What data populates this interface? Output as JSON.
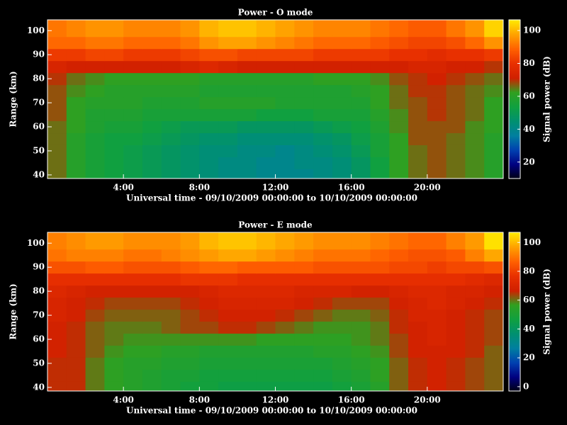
{
  "chart_data": [
    {
      "type": "heatmap",
      "title": "Power - O mode",
      "xlabel": "Universal time - 09/10/2009 00:00:00 to 10/10/2009 00:00:00",
      "ylabel": "Range (km)",
      "colorbar_label": "Signal power (dB)",
      "x_bins": [
        0,
        1,
        2,
        3,
        4,
        5,
        6,
        7,
        8,
        9,
        10,
        11,
        12,
        13,
        14,
        15,
        16,
        17,
        18,
        19,
        20,
        21,
        22,
        23,
        24
      ],
      "y_bins": [
        38.5,
        42.5,
        47.5,
        52.5,
        57.5,
        62.5,
        67.5,
        72.5,
        77.5,
        82.5,
        87.5,
        92.5,
        97.5,
        104.5
      ],
      "xlim": [
        0,
        24
      ],
      "ylim": [
        38.5,
        104.5
      ],
      "zlim": [
        10,
        106.5
      ],
      "xticks": [
        {
          "value": 4,
          "label": "4:00"
        },
        {
          "value": 8,
          "label": "8:00"
        },
        {
          "value": 12,
          "label": "12:00"
        },
        {
          "value": 16,
          "label": "16:00"
        },
        {
          "value": 20,
          "label": "20:00"
        }
      ],
      "yticks": [
        40,
        50,
        60,
        70,
        80,
        90,
        100
      ],
      "zticks": [
        20,
        40,
        60,
        80,
        100
      ],
      "colormap": [
        "#000010",
        "#000080",
        "#0040b0",
        "#007fa0",
        "#009070",
        "#10a040",
        "#30a020",
        "#d02000",
        "#e83000",
        "#ff6000",
        "#ffa000",
        "#ffe800"
      ],
      "values": [
        [
          66,
          60,
          56,
          54,
          52,
          50,
          48,
          46,
          44,
          42,
          42,
          40,
          40,
          40,
          42,
          44,
          48,
          54,
          62,
          66,
          68,
          66,
          64,
          60
        ],
        [
          66,
          60,
          56,
          54,
          52,
          50,
          48,
          46,
          44,
          42,
          42,
          40,
          40,
          42,
          42,
          44,
          48,
          54,
          62,
          66,
          68,
          66,
          64,
          60
        ],
        [
          66,
          60,
          56,
          54,
          52,
          50,
          48,
          46,
          44,
          44,
          42,
          42,
          40,
          42,
          44,
          46,
          50,
          56,
          62,
          66,
          68,
          66,
          64,
          60
        ],
        [
          66,
          60,
          56,
          54,
          54,
          52,
          50,
          48,
          46,
          46,
          44,
          44,
          44,
          44,
          46,
          48,
          52,
          56,
          62,
          68,
          68,
          66,
          64,
          60
        ],
        [
          66,
          62,
          58,
          56,
          56,
          54,
          52,
          50,
          50,
          50,
          48,
          48,
          48,
          48,
          50,
          52,
          54,
          58,
          64,
          68,
          68,
          68,
          64,
          62
        ],
        [
          68,
          62,
          58,
          58,
          58,
          56,
          56,
          56,
          56,
          56,
          56,
          54,
          54,
          54,
          56,
          56,
          56,
          60,
          64,
          68,
          70,
          68,
          66,
          62
        ],
        [
          68,
          62,
          60,
          60,
          60,
          58,
          58,
          58,
          60,
          60,
          60,
          60,
          58,
          58,
          58,
          58,
          58,
          62,
          66,
          68,
          70,
          68,
          66,
          62
        ],
        [
          68,
          64,
          62,
          60,
          60,
          60,
          60,
          60,
          58,
          58,
          58,
          58,
          58,
          58,
          58,
          58,
          60,
          62,
          66,
          70,
          70,
          68,
          66,
          64
        ],
        [
          70,
          66,
          64,
          62,
          62,
          62,
          62,
          62,
          60,
          60,
          60,
          60,
          60,
          60,
          62,
          62,
          62,
          64,
          68,
          70,
          72,
          70,
          68,
          66
        ],
        [
          74,
          72,
          72,
          72,
          72,
          72,
          72,
          74,
          76,
          74,
          72,
          72,
          72,
          72,
          72,
          72,
          72,
          72,
          72,
          74,
          74,
          72,
          72,
          70
        ],
        [
          82,
          82,
          84,
          84,
          82,
          82,
          82,
          84,
          86,
          86,
          84,
          84,
          84,
          84,
          82,
          82,
          82,
          82,
          80,
          80,
          78,
          80,
          80,
          82
        ],
        [
          90,
          90,
          92,
          92,
          90,
          90,
          90,
          92,
          96,
          98,
          98,
          96,
          94,
          92,
          90,
          90,
          90,
          88,
          86,
          84,
          84,
          86,
          90,
          96
        ],
        [
          92,
          94,
          96,
          96,
          94,
          94,
          94,
          96,
          100,
          102,
          102,
          100,
          98,
          96,
          94,
          94,
          94,
          92,
          90,
          88,
          88,
          92,
          96,
          104
        ]
      ]
    },
    {
      "type": "heatmap",
      "title": "Power - E mode",
      "xlabel": "Universal time - 09/10/2009 00:00:00 to 10/10/2009 00:00:00",
      "ylabel": "Range (km)",
      "colorbar_label": "Signal power (dB)",
      "x_bins": [
        0,
        1,
        2,
        3,
        4,
        5,
        6,
        7,
        8,
        9,
        10,
        11,
        12,
        13,
        14,
        15,
        16,
        17,
        18,
        19,
        20,
        21,
        22,
        23,
        24
      ],
      "y_bins": [
        38.5,
        42.5,
        47.5,
        52.5,
        57.5,
        62.5,
        67.5,
        72.5,
        77.5,
        82.5,
        87.5,
        92.5,
        97.5,
        104.5
      ],
      "xlim": [
        0,
        24
      ],
      "ylim": [
        38.5,
        104.5
      ],
      "zlim": [
        -3,
        107
      ],
      "xticks": [
        {
          "value": 4,
          "label": "4:00"
        },
        {
          "value": 8,
          "label": "8:00"
        },
        {
          "value": 12,
          "label": "12:00"
        },
        {
          "value": 16,
          "label": "16:00"
        },
        {
          "value": 20,
          "label": "20:00"
        }
      ],
      "yticks": [
        40,
        50,
        60,
        70,
        80,
        90,
        100
      ],
      "zticks": [
        0,
        20,
        40,
        60,
        80,
        100
      ],
      "colormap": [
        "#000010",
        "#000080",
        "#0040b0",
        "#007fa0",
        "#009070",
        "#10a040",
        "#30a020",
        "#d02000",
        "#e83000",
        "#ff6000",
        "#ffa000",
        "#ffe800"
      ],
      "values": [
        [
          66,
          66,
          60,
          56,
          54,
          52,
          50,
          48,
          48,
          46,
          46,
          46,
          46,
          46,
          46,
          48,
          50,
          54,
          62,
          66,
          68,
          66,
          64,
          62
        ],
        [
          66,
          66,
          60,
          56,
          54,
          52,
          50,
          50,
          48,
          48,
          48,
          48,
          48,
          48,
          48,
          50,
          52,
          56,
          62,
          66,
          68,
          66,
          64,
          62
        ],
        [
          66,
          66,
          60,
          56,
          54,
          54,
          52,
          52,
          50,
          50,
          50,
          50,
          50,
          50,
          50,
          52,
          54,
          56,
          62,
          66,
          68,
          66,
          64,
          62
        ],
        [
          68,
          66,
          62,
          58,
          56,
          56,
          54,
          54,
          52,
          52,
          52,
          52,
          52,
          52,
          54,
          54,
          56,
          58,
          64,
          68,
          68,
          68,
          66,
          62
        ],
        [
          68,
          66,
          62,
          60,
          58,
          58,
          58,
          58,
          58,
          58,
          58,
          56,
          56,
          56,
          56,
          56,
          58,
          60,
          64,
          68,
          70,
          68,
          66,
          64
        ],
        [
          68,
          66,
          62,
          60,
          60,
          60,
          62,
          64,
          64,
          66,
          66,
          64,
          62,
          60,
          58,
          58,
          58,
          60,
          66,
          68,
          70,
          68,
          66,
          64
        ],
        [
          70,
          68,
          64,
          62,
          62,
          62,
          62,
          64,
          66,
          68,
          68,
          68,
          66,
          64,
          62,
          60,
          60,
          62,
          66,
          70,
          70,
          68,
          66,
          64
        ],
        [
          70,
          68,
          66,
          64,
          64,
          64,
          64,
          66,
          68,
          70,
          70,
          70,
          70,
          68,
          66,
          64,
          64,
          64,
          68,
          70,
          72,
          70,
          68,
          66
        ],
        [
          72,
          70,
          68,
          68,
          68,
          68,
          68,
          68,
          70,
          72,
          72,
          72,
          72,
          70,
          70,
          70,
          68,
          68,
          70,
          72,
          72,
          70,
          70,
          68
        ],
        [
          76,
          76,
          76,
          76,
          76,
          76,
          76,
          78,
          78,
          78,
          76,
          76,
          76,
          76,
          76,
          76,
          76,
          76,
          76,
          76,
          76,
          76,
          74,
          72
        ],
        [
          84,
          84,
          86,
          86,
          84,
          84,
          84,
          86,
          88,
          88,
          86,
          86,
          86,
          86,
          84,
          84,
          84,
          84,
          82,
          82,
          80,
          82,
          82,
          84
        ],
        [
          90,
          92,
          92,
          92,
          90,
          90,
          92,
          94,
          96,
          98,
          98,
          96,
          94,
          92,
          90,
          90,
          90,
          88,
          86,
          84,
          84,
          86,
          92,
          98
        ],
        [
          92,
          94,
          96,
          96,
          94,
          94,
          94,
          96,
          100,
          102,
          102,
          100,
          98,
          96,
          94,
          94,
          94,
          92,
          90,
          88,
          88,
          92,
          96,
          106
        ]
      ]
    }
  ]
}
